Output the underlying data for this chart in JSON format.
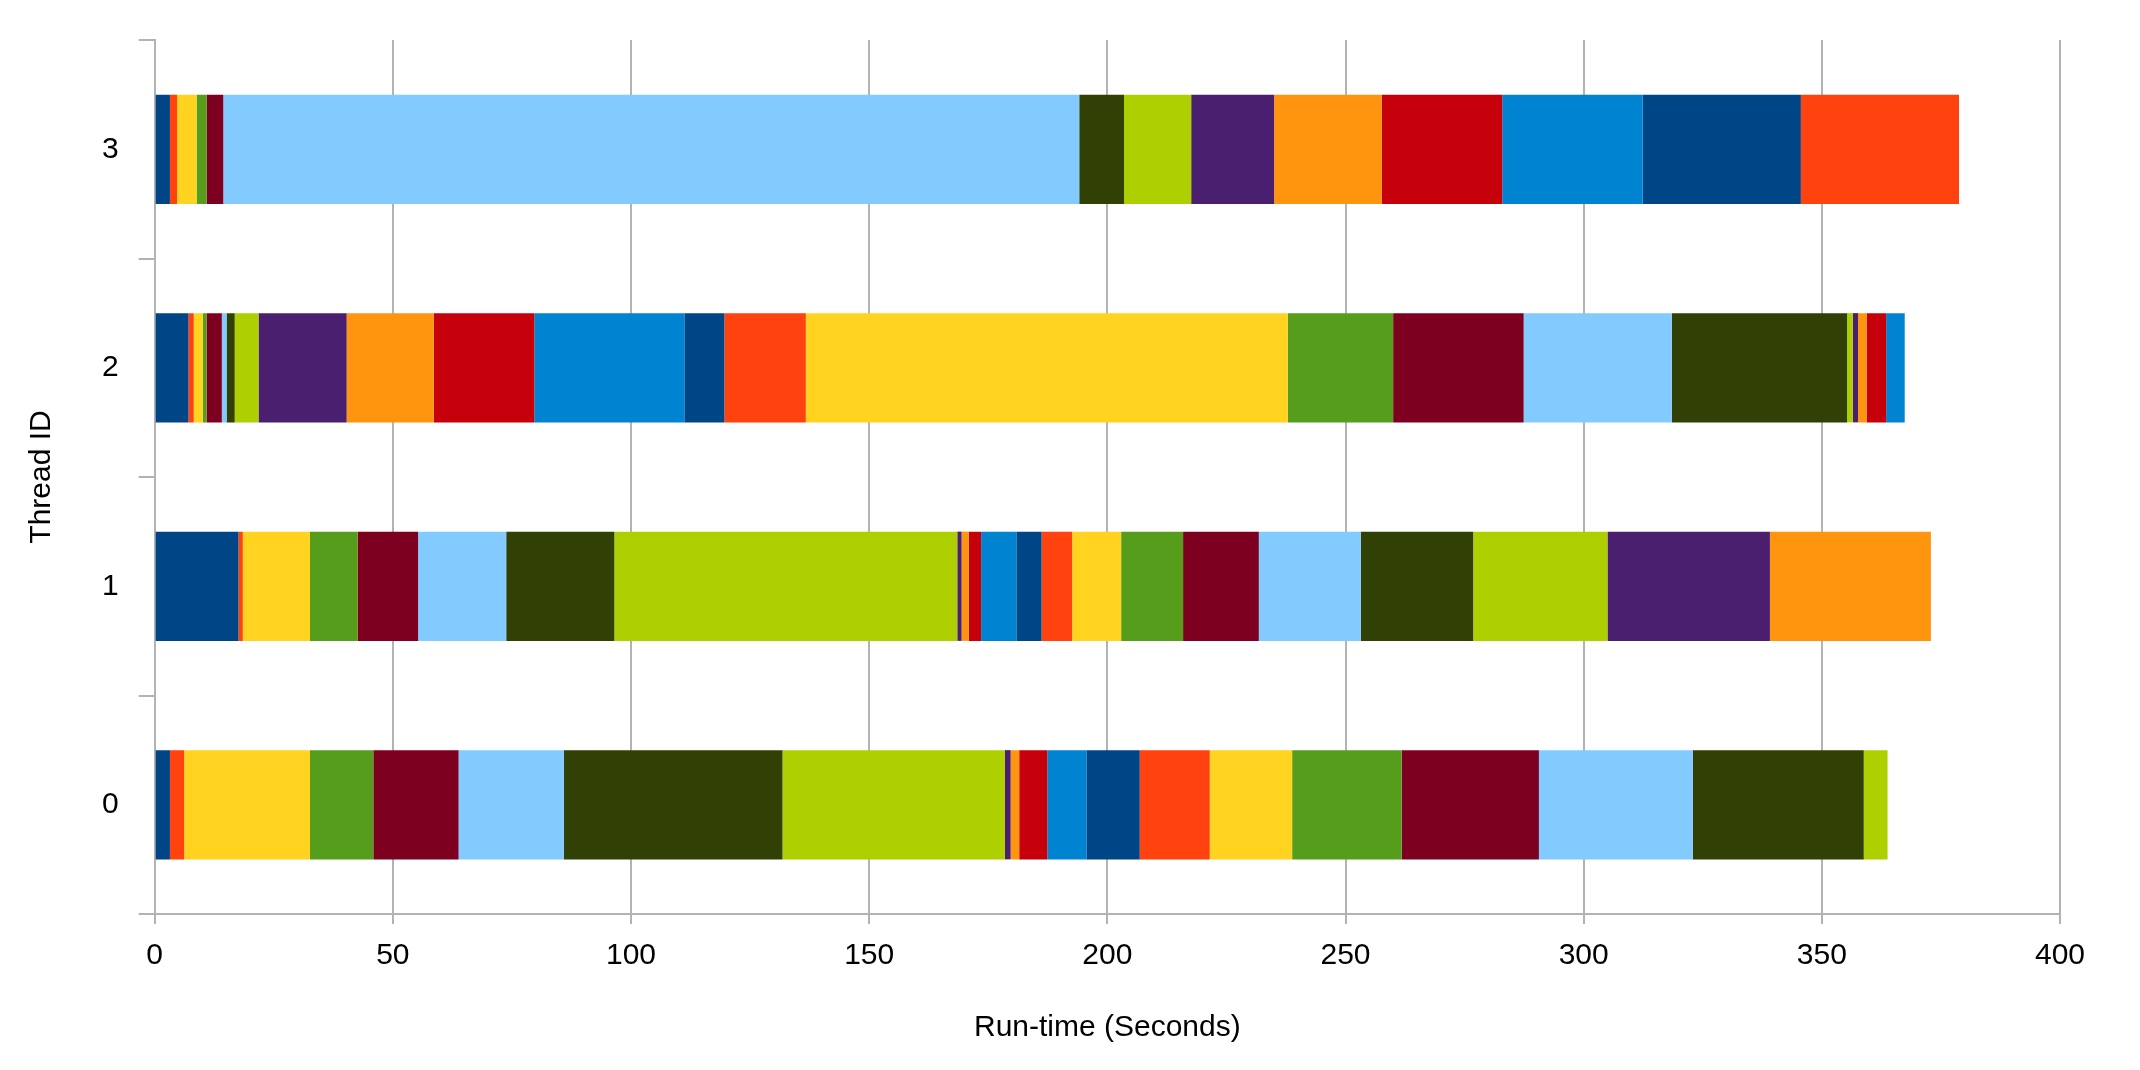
{
  "chart_data": {
    "type": "bar",
    "orientation": "horizontal",
    "stacked": true,
    "xlabel": "Run-time (Seconds)",
    "ylabel": "Thread ID",
    "categories": [
      "3",
      "2",
      "1",
      "0"
    ],
    "xlim": [
      0,
      400
    ],
    "xticks": [
      0,
      50,
      100,
      150,
      200,
      250,
      300,
      350,
      400
    ],
    "grid": "x",
    "legend": false,
    "series": [
      {
        "color": "#004586",
        "values": [
          3.2,
          7.1,
          17.6,
          3.2
        ]
      },
      {
        "color": "#ff420e",
        "values": [
          1.5,
          1.1,
          0.9,
          3
        ]
      },
      {
        "color": "#ffd320",
        "values": [
          4.1,
          1.9,
          14.1,
          26.4
        ]
      },
      {
        "color": "#579d1c",
        "values": [
          2.1,
          0.8,
          10,
          13.3
        ]
      },
      {
        "color": "#7e0021",
        "values": [
          3.5,
          3.2,
          12.7,
          17.9
        ]
      },
      {
        "color": "#83caff",
        "values": [
          179.7,
          1,
          18.5,
          22.1
        ]
      },
      {
        "color": "#314004",
        "values": [
          9.4,
          1.7,
          22.7,
          45.9
        ]
      },
      {
        "color": "#aecf00",
        "values": [
          14.1,
          5,
          72,
          46.7
        ]
      },
      {
        "color": "#4b1f6f",
        "values": [
          17.4,
          18.5,
          0.9,
          1.2
        ]
      },
      {
        "color": "#ff950e",
        "values": [
          22.6,
          18.3,
          1.5,
          1.8
        ]
      },
      {
        "color": "#c5000b",
        "values": [
          25.3,
          21.1,
          2.6,
          5.9
        ]
      },
      {
        "color": "#0084d1",
        "values": [
          29.5,
          31.5,
          7.4,
          8.2
        ]
      },
      {
        "color": "#004586",
        "values": [
          33.2,
          8.4,
          5.3,
          11.2
        ]
      },
      {
        "color": "#ff420e",
        "values": [
          33.2,
          17.1,
          6.4,
          14.7
        ]
      },
      {
        "color": "#ffd320",
        "values": [
          null,
          101.2,
          10.3,
          17.3
        ]
      },
      {
        "color": "#579d1c",
        "values": [
          null,
          22.1,
          13,
          23
        ]
      },
      {
        "color": "#7e0021",
        "values": [
          null,
          27.4,
          15.9,
          28.8
        ]
      },
      {
        "color": "#83caff",
        "values": [
          null,
          31.1,
          21.4,
          32.3
        ]
      },
      {
        "color": "#314004",
        "values": [
          null,
          36.8,
          23.6,
          35.9
        ]
      },
      {
        "color": "#aecf00",
        "values": [
          null,
          1.2,
          28.2,
          5
        ]
      },
      {
        "color": "#4b1f6f",
        "values": [
          null,
          1.1,
          34.1,
          null
        ]
      },
      {
        "color": "#ff950e",
        "values": [
          null,
          1.8,
          33.8,
          null
        ]
      },
      {
        "color": "#c5000b",
        "values": [
          null,
          4.1,
          null,
          null
        ]
      },
      {
        "color": "#0084d1",
        "values": [
          null,
          3.9,
          null,
          null
        ]
      }
    ]
  }
}
